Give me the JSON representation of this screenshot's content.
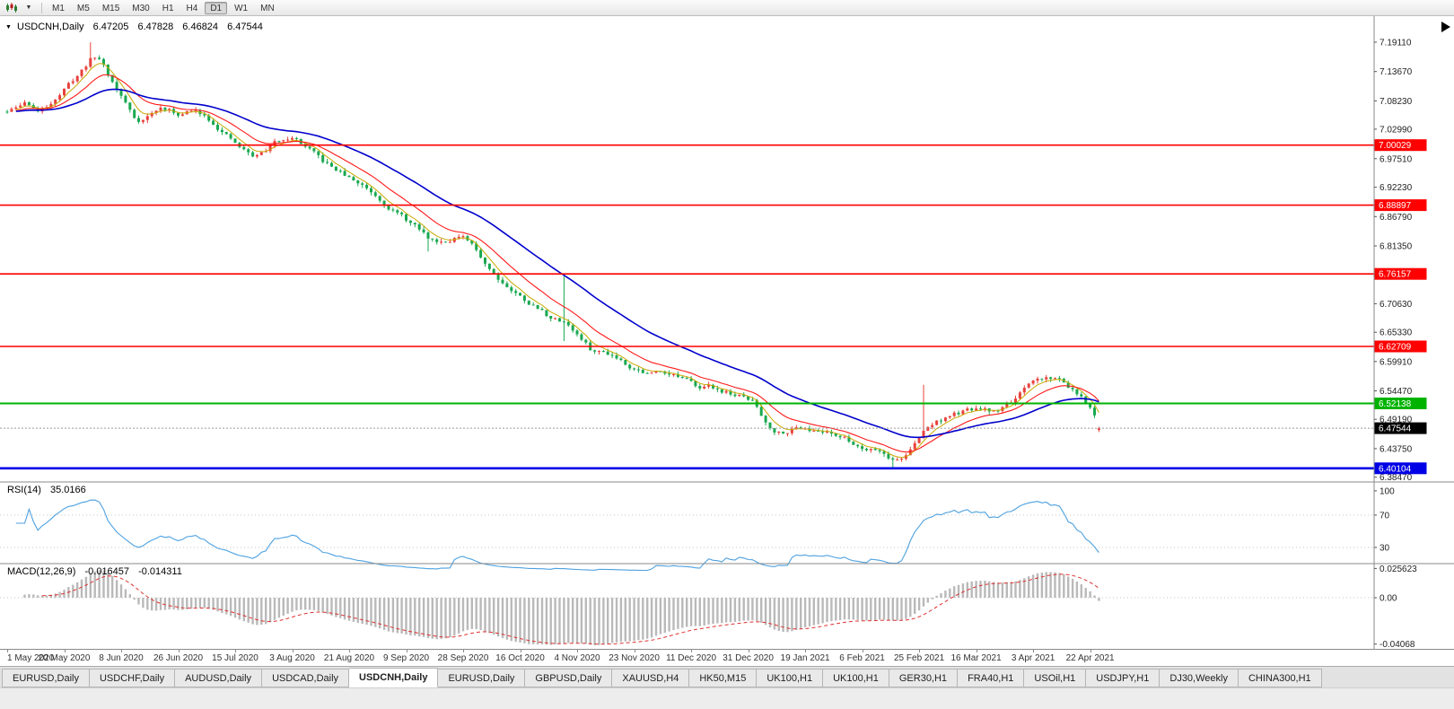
{
  "toolbar": {
    "timeframes": [
      "M1",
      "M5",
      "M15",
      "M30",
      "H1",
      "H4",
      "D1",
      "W1",
      "MN"
    ],
    "active_timeframe": "D1",
    "icons": {
      "chart_type": "candlestick-chart",
      "dropdown": "caret-down"
    }
  },
  "chart": {
    "collapse_icon": "▼",
    "symbol_period": "USDCNH,Daily",
    "open": "6.47205",
    "high": "6.47828",
    "low": "6.46824",
    "close": "6.47544"
  },
  "indicators": {
    "rsi_name": "RSI(14)",
    "rsi_value": "35.0166",
    "macd_name": "MACD(12,26,9)",
    "macd_value_main": "-0.016457",
    "macd_value_signal": "-0.014311"
  },
  "chart_data": {
    "type": "candlestick",
    "symbol": "USDCNH",
    "period": "Daily",
    "x0": 8,
    "dx": 4.885,
    "count": 250,
    "seed": 11,
    "noise": 0.0045,
    "wick": 0.006,
    "ylim": [
      6.3758,
      7.2394
    ],
    "candles_per_label": 13,
    "x_labels": [
      "1 May 2020",
      "20 May 2020",
      "8 Jun 2020",
      "26 Jun 2020",
      "15 Jul 2020",
      "3 Aug 2020",
      "21 Aug 2020",
      "9 Sep 2020",
      "28 Sep 2020",
      "16 Oct 2020",
      "4 Nov 2020",
      "23 Nov 2020",
      "11 Dec 2020",
      "31 Dec 2020",
      "19 Jan 2021",
      "6 Feb 2021",
      "25 Feb 2021",
      "16 Mar 2021",
      "3 Apr 2021",
      "22 Apr 2021"
    ],
    "price_anchors": [
      [
        0,
        7.062
      ],
      [
        4,
        7.085
      ],
      [
        7,
        7.052
      ],
      [
        10,
        7.095
      ],
      [
        13,
        7.115
      ],
      [
        16,
        7.142
      ],
      [
        19,
        7.175
      ],
      [
        21,
        7.158
      ],
      [
        23,
        7.108
      ],
      [
        26,
        7.072
      ],
      [
        29,
        7.032
      ],
      [
        32,
        7.062
      ],
      [
        35,
        7.075
      ],
      [
        38,
        7.052
      ],
      [
        41,
        7.066
      ],
      [
        44,
        7.058
      ],
      [
        47,
        7.034
      ],
      [
        50,
        7.004
      ],
      [
        53,
        6.986
      ],
      [
        56,
        6.972
      ],
      [
        58,
        6.992
      ],
      [
        61,
        7.014
      ],
      [
        64,
        7.021
      ],
      [
        66,
        7.004
      ],
      [
        69,
        6.979
      ],
      [
        72,
        6.958
      ],
      [
        75,
        6.948
      ],
      [
        78,
        6.93
      ],
      [
        81,
        6.921
      ],
      [
        84,
        6.9
      ],
      [
        87,
        6.878
      ],
      [
        90,
        6.858
      ],
      [
        93,
        6.84
      ],
      [
        96,
        6.816
      ],
      [
        99,
        6.824
      ],
      [
        102,
        6.836
      ],
      [
        104,
        6.822
      ],
      [
        106,
        6.8
      ],
      [
        108,
        6.778
      ],
      [
        110,
        6.758
      ],
      [
        113,
        6.736
      ],
      [
        116,
        6.716
      ],
      [
        119,
        6.701
      ],
      [
        122,
        6.684
      ],
      [
        124,
        6.671
      ],
      [
        127,
        6.673
      ],
      [
        129,
        6.646
      ],
      [
        131,
        6.625
      ],
      [
        133,
        6.608
      ],
      [
        136,
        6.618
      ],
      [
        139,
        6.604
      ],
      [
        141,
        6.589
      ],
      [
        143,
        6.583
      ],
      [
        146,
        6.572
      ],
      [
        149,
        6.586
      ],
      [
        152,
        6.571
      ],
      [
        156,
        6.549
      ],
      [
        159,
        6.554
      ],
      [
        162,
        6.545
      ],
      [
        165,
        6.536
      ],
      [
        168,
        6.528
      ],
      [
        170,
        6.519
      ],
      [
        172,
        6.476
      ],
      [
        175,
        6.462
      ],
      [
        178,
        6.477
      ],
      [
        182,
        6.481
      ],
      [
        184,
        6.463
      ],
      [
        187,
        6.473
      ],
      [
        190,
        6.455
      ],
      [
        193,
        6.441
      ],
      [
        195,
        6.433
      ],
      [
        197,
        6.446
      ],
      [
        200,
        6.421
      ],
      [
        202,
        6.408
      ],
      [
        204,
        6.426
      ],
      [
        206,
        6.449
      ],
      [
        208,
        6.471
      ],
      [
        209,
        6.489
      ],
      [
        211,
        6.491
      ],
      [
        214,
        6.501
      ],
      [
        217,
        6.506
      ],
      [
        221,
        6.511
      ],
      [
        224,
        6.501
      ],
      [
        227,
        6.521
      ],
      [
        230,
        6.541
      ],
      [
        232,
        6.554
      ],
      [
        234,
        6.568
      ],
      [
        237,
        6.572
      ],
      [
        239,
        6.567
      ],
      [
        241,
        6.554
      ],
      [
        243,
        6.537
      ],
      [
        245,
        6.517
      ],
      [
        247,
        6.497
      ],
      [
        249,
        6.476
      ]
    ],
    "spikes": [
      {
        "i": 19,
        "high": 7.191
      },
      {
        "i": 96,
        "low": 6.803
      },
      {
        "i": 127,
        "high": 6.757,
        "low": 6.637
      },
      {
        "i": 202,
        "low": 6.402
      },
      {
        "i": 209,
        "high": 6.556
      }
    ],
    "last_candle": [
      6.47205,
      6.47828,
      6.46824,
      6.47544
    ],
    "y_ticks": [
      "7.19110",
      "7.13670",
      "7.08230",
      "7.02990",
      "6.97510",
      "6.92230",
      "6.86790",
      "6.81350",
      "6.75910",
      "6.70630",
      "6.65330",
      "6.59910",
      "6.54470",
      "6.49190",
      "6.43750",
      "6.38470"
    ],
    "hlines": [
      {
        "price": "7.00029",
        "color": "#ff0000",
        "width": 1.6
      },
      {
        "price": "6.88897",
        "color": "#ff0000",
        "width": 1.6
      },
      {
        "price": "6.76157",
        "color": "#ff0000",
        "width": 1.6
      },
      {
        "price": "6.62709",
        "color": "#ff0000",
        "width": 1.6
      },
      {
        "price": "6.52138",
        "color": "#00b300",
        "width": 2
      },
      {
        "price": "6.40104",
        "color": "#0000e6",
        "width": 2.6
      }
    ],
    "current_price": {
      "value": "6.47544",
      "badge_color": "#000000"
    },
    "moving_averages": [
      {
        "type": "ema",
        "period": 5,
        "color": "#c9a800",
        "width": 1
      },
      {
        "type": "ema",
        "period": 13,
        "color": "#ff1a1a",
        "width": 1.1
      },
      {
        "type": "ema",
        "period": 34,
        "color": "#0000cc",
        "width": 1.6
      }
    ],
    "candle_colors": {
      "up": "#e8413c",
      "down": "#18a850"
    },
    "rsi": {
      "period": 14,
      "color": "#4da1e0",
      "ylim": [
        10,
        111
      ],
      "levels": [
        "100",
        "70",
        "30"
      ],
      "level_lines": [
        70,
        30
      ],
      "current": 35.0166
    },
    "macd": {
      "fast": 12,
      "slow": 26,
      "signal_period": 9,
      "ylim": [
        -0.0449,
        0.0299
      ],
      "axis_labels": [
        "0.025623",
        "0.00",
        "-0.04068"
      ],
      "axis_values": [
        0.025623,
        0,
        -0.04068
      ],
      "hist_color": "#b9b9b9",
      "signal_color": "#e03030",
      "current_main": -0.016457,
      "current_signal": -0.014311
    }
  },
  "tabs": [
    {
      "label": "EURUSD,Daily",
      "active": false
    },
    {
      "label": "USDCHF,Daily",
      "active": false
    },
    {
      "label": "AUDUSD,Daily",
      "active": false
    },
    {
      "label": "USDCAD,Daily",
      "active": false
    },
    {
      "label": "USDCNH,Daily",
      "active": true
    },
    {
      "label": "EURUSD,Daily",
      "active": false
    },
    {
      "label": "GBPUSD,Daily",
      "active": false
    },
    {
      "label": "XAUUSD,H4",
      "active": false
    },
    {
      "label": "HK50,M15",
      "active": false
    },
    {
      "label": "UK100,H1",
      "active": false
    },
    {
      "label": "UK100,H1",
      "active": false
    },
    {
      "label": "GER30,H1",
      "active": false
    },
    {
      "label": "FRA40,H1",
      "active": false
    },
    {
      "label": "USOil,H1",
      "active": false
    },
    {
      "label": "USDJPY,H1",
      "active": false
    },
    {
      "label": "DJ30,Weekly",
      "active": false
    },
    {
      "label": "CHINA300,H1",
      "active": false
    }
  ]
}
